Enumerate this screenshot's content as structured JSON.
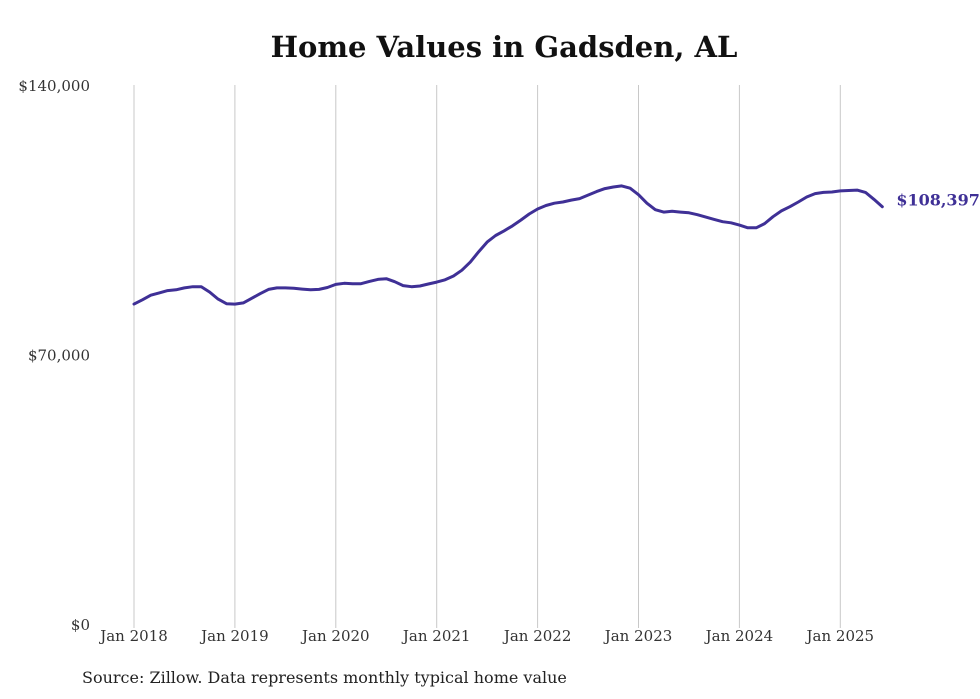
{
  "chart_data": {
    "type": "line",
    "title": "Home Values in Gadsden, AL",
    "xlabel": "",
    "ylabel": "",
    "ylim": [
      0,
      140000
    ],
    "y_ticks": [
      0,
      70000,
      140000
    ],
    "y_tick_labels": [
      "$0",
      "$70,000",
      "$140,000"
    ],
    "x_ticks": [
      "Jan 2018",
      "Jan 2019",
      "Jan 2020",
      "Jan 2021",
      "Jan 2022",
      "Jan 2023",
      "Jan 2024",
      "Jan 2025"
    ],
    "x_start": "2018-01",
    "grid": "vertical",
    "series": [
      {
        "color": "#3f3096",
        "end_label": "$108,397",
        "values": [
          83100,
          84200,
          85400,
          86000,
          86600,
          86800,
          87300,
          87600,
          87600,
          86200,
          84400,
          83200,
          83100,
          83400,
          84600,
          85800,
          86900,
          87300,
          87300,
          87200,
          87000,
          86800,
          86900,
          87400,
          88200,
          88500,
          88400,
          88400,
          89000,
          89500,
          89700,
          88900,
          87900,
          87600,
          87800,
          88300,
          88800,
          89400,
          90400,
          91900,
          94000,
          96700,
          99200,
          100900,
          102100,
          103400,
          104900,
          106500,
          107800,
          108700,
          109300,
          109600,
          110100,
          110500,
          111400,
          112300,
          113100,
          113500,
          113800,
          113200,
          111500,
          109300,
          107600,
          107000,
          107200,
          107000,
          106800,
          106300,
          105700,
          105100,
          104500,
          104200,
          103600,
          102900,
          102900,
          104000,
          105800,
          107300,
          108400,
          109600,
          110900,
          111800,
          112100,
          112200,
          112500,
          112600,
          112700,
          112100,
          110300,
          108397
        ]
      }
    ],
    "source_note": "Source: Zillow. Data represents monthly typical home value"
  }
}
